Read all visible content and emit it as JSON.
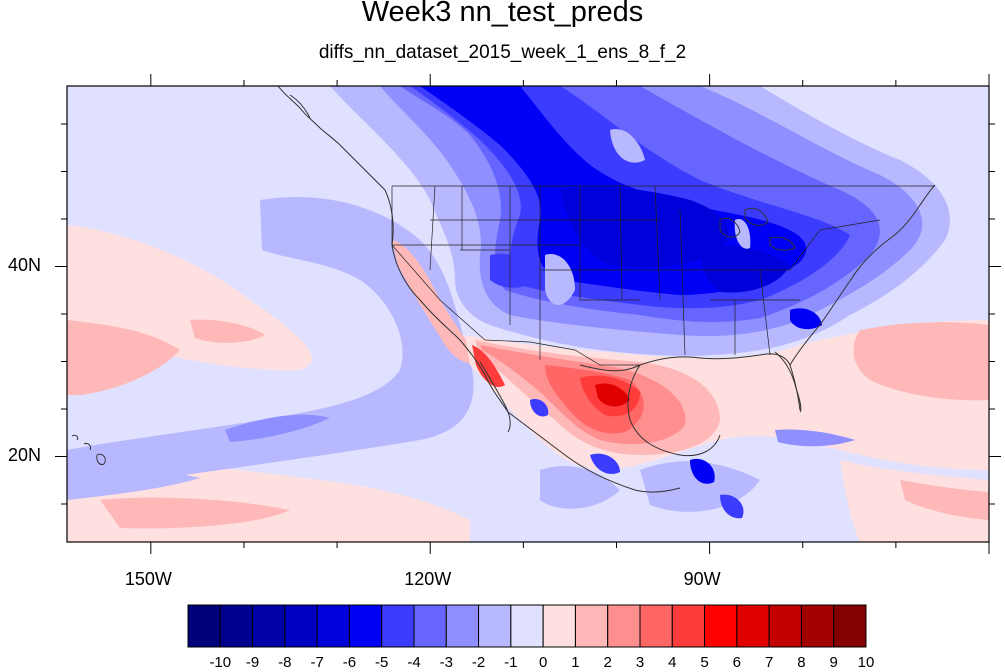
{
  "title": "Week3 nn_test_preds",
  "subtitle": "diffs_nn_dataset_2015_week_1_ens_8_f_2",
  "map": {
    "projection": "cylindrical-equidistant",
    "lon_range": [
      -159,
      -60
    ],
    "lat_range": [
      11,
      59
    ],
    "lat_labels": [
      {
        "value": 40,
        "text": "40N"
      },
      {
        "value": 20,
        "text": "20N"
      }
    ],
    "lon_labels": [
      {
        "value": -150,
        "text": "150W"
      },
      {
        "value": -120,
        "text": "120W"
      },
      {
        "value": -90,
        "text": "90W"
      }
    ]
  },
  "colorbar": {
    "labels": [
      "-10",
      "-9",
      "-8",
      "-7",
      "-6",
      "-5",
      "-4",
      "-3",
      "-2",
      "-1",
      "0",
      "1",
      "2",
      "3",
      "4",
      "5",
      "6",
      "7",
      "8",
      "9",
      "10"
    ],
    "colors": [
      "#00007a",
      "#00008f",
      "#0000a8",
      "#0000c2",
      "#0000db",
      "#0000f5",
      "#3c3cff",
      "#6666ff",
      "#8f8fff",
      "#b8b8ff",
      "#e0e0ff",
      "#ffe0e0",
      "#ffb8b8",
      "#ff8f8f",
      "#ff6666",
      "#ff3c3c",
      "#ff0000",
      "#e00000",
      "#c20000",
      "#a30000",
      "#850000"
    ]
  }
}
